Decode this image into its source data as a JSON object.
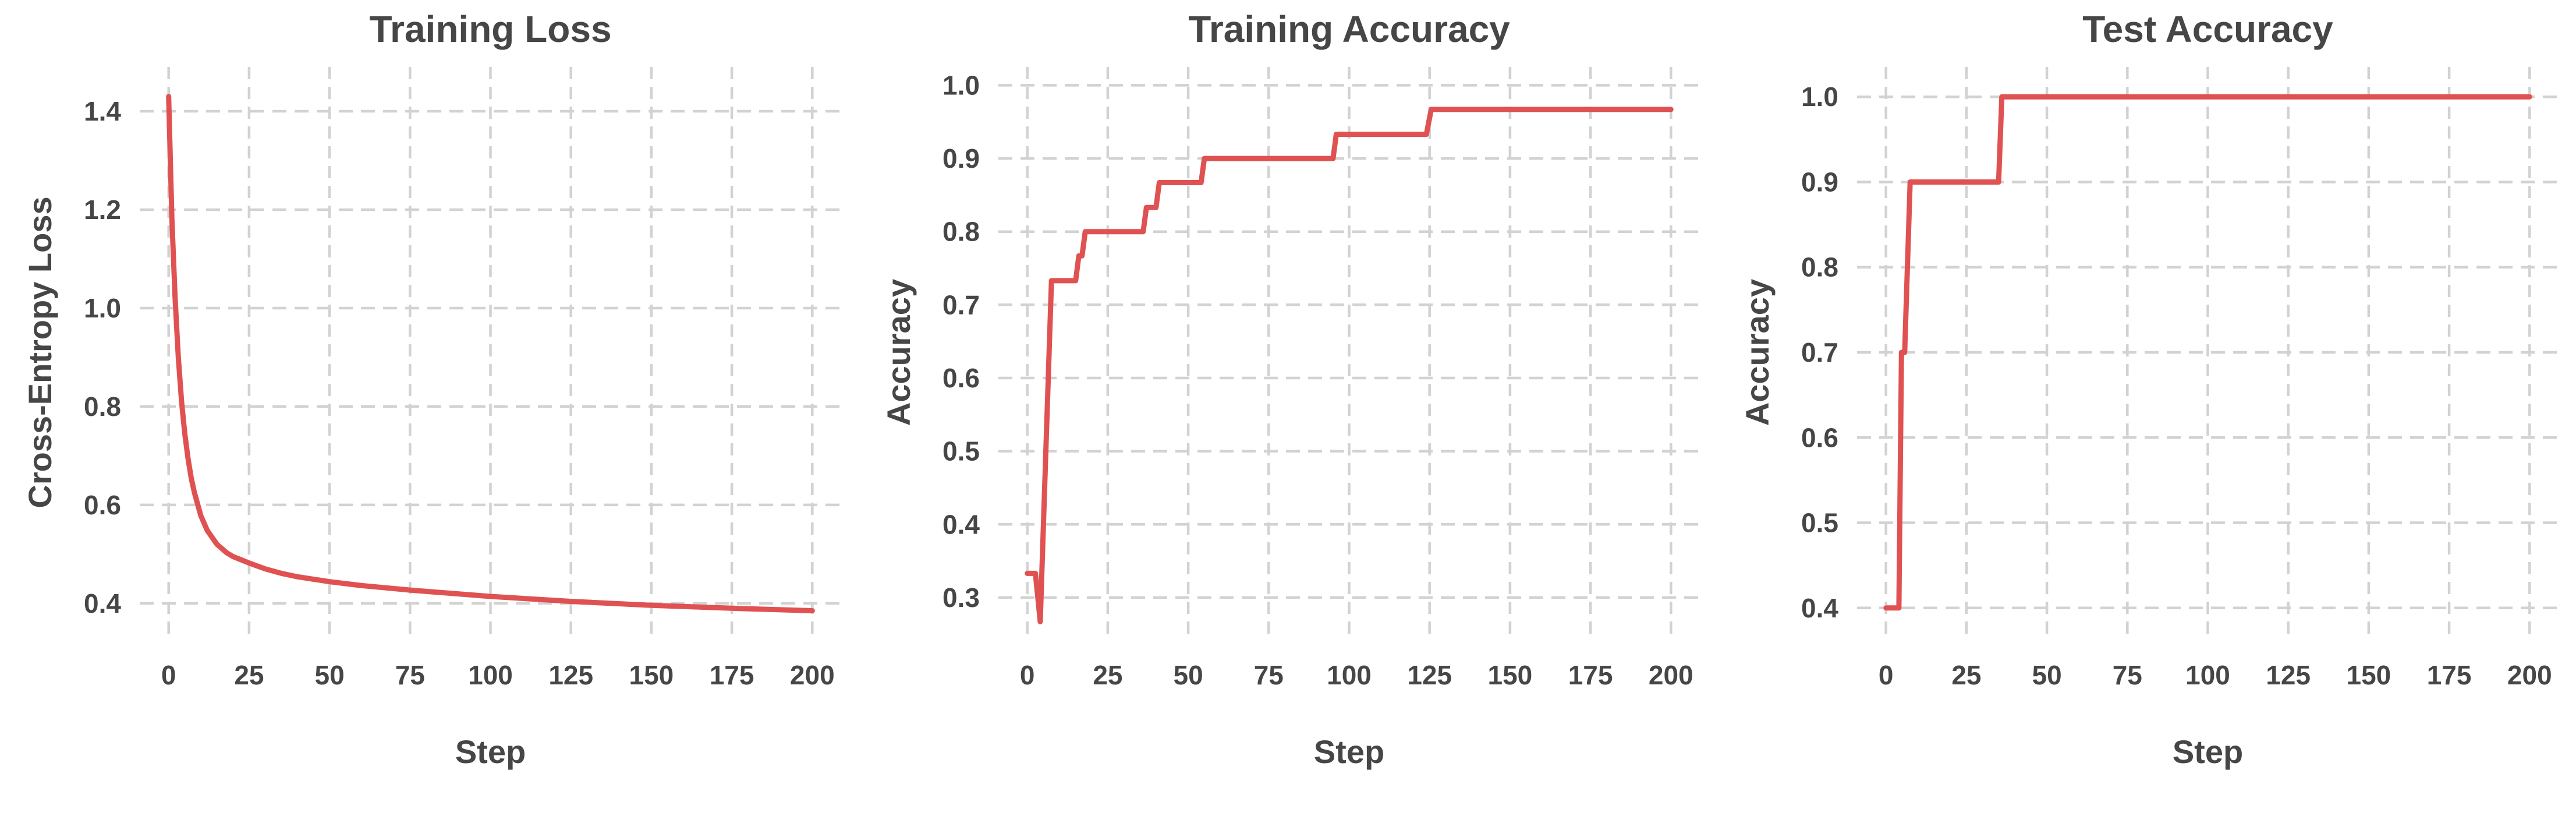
{
  "figure": {
    "background": "#ffffff",
    "text_color": "#464646",
    "grid_color": "#d2d2d2",
    "accent_color": "#e05152"
  },
  "chart_data": [
    {
      "type": "line",
      "title": "Training Loss",
      "xlabel": "Step",
      "ylabel": "Cross-Entropy Loss",
      "xlim": [
        -9,
        209
      ],
      "ylim": [
        0.33,
        1.49
      ],
      "xtick_values": [
        0,
        25,
        50,
        75,
        100,
        125,
        150,
        175,
        200
      ],
      "xtick_labels": [
        "0",
        "25",
        "50",
        "75",
        "100",
        "125",
        "150",
        "175",
        "200"
      ],
      "ytick_values": [
        0.4,
        0.6,
        0.8,
        1.0,
        1.2,
        1.4
      ],
      "ytick_labels": [
        "0.4",
        "0.6",
        "0.8",
        "1.0",
        "1.2",
        "1.4"
      ],
      "grid": true,
      "legend": "none",
      "line_color": "#e05152",
      "series": [
        {
          "name": "train_loss",
          "points": [
            [
              0,
              1.43
            ],
            [
              1,
              1.18
            ],
            [
              2,
              1.02
            ],
            [
              3,
              0.9
            ],
            [
              4,
              0.81
            ],
            [
              5,
              0.745
            ],
            [
              6,
              0.695
            ],
            [
              7,
              0.655
            ],
            [
              8,
              0.625
            ],
            [
              10,
              0.578
            ],
            [
              12,
              0.548
            ],
            [
              15,
              0.52
            ],
            [
              18,
              0.503
            ],
            [
              20,
              0.495
            ],
            [
              25,
              0.482
            ],
            [
              30,
              0.47
            ],
            [
              35,
              0.461
            ],
            [
              40,
              0.454
            ],
            [
              50,
              0.444
            ],
            [
              60,
              0.436
            ],
            [
              75,
              0.427
            ],
            [
              100,
              0.414
            ],
            [
              125,
              0.404
            ],
            [
              150,
              0.396
            ],
            [
              175,
              0.39
            ],
            [
              200,
              0.385
            ]
          ]
        }
      ]
    },
    {
      "type": "line",
      "title": "Training Accuracy",
      "xlabel": "Step",
      "ylabel": "Accuracy",
      "xlim": [
        -9,
        209
      ],
      "ylim": [
        0.245,
        1.025
      ],
      "xtick_values": [
        0,
        25,
        50,
        75,
        100,
        125,
        150,
        175,
        200
      ],
      "xtick_labels": [
        "0",
        "25",
        "50",
        "75",
        "100",
        "125",
        "150",
        "175",
        "200"
      ],
      "ytick_values": [
        0.3,
        0.4,
        0.5,
        0.6,
        0.7,
        0.8,
        0.9,
        1.0
      ],
      "ytick_labels": [
        "0.3",
        "0.4",
        "0.5",
        "0.6",
        "0.7",
        "0.8",
        "0.9",
        "1.0"
      ],
      "grid": true,
      "legend": "none",
      "line_color": "#e05152",
      "series": [
        {
          "name": "train_accuracy",
          "points": [
            [
              0,
              0.333
            ],
            [
              2.5,
              0.333
            ],
            [
              4,
              0.267
            ],
            [
              5,
              0.4
            ],
            [
              6,
              0.533
            ],
            [
              6.5,
              0.6
            ],
            [
              7.5,
              0.733
            ],
            [
              15,
              0.733
            ],
            [
              16,
              0.767
            ],
            [
              17,
              0.767
            ],
            [
              18,
              0.8
            ],
            [
              36,
              0.8
            ],
            [
              37,
              0.833
            ],
            [
              40,
              0.833
            ],
            [
              41,
              0.867
            ],
            [
              54,
              0.867
            ],
            [
              55,
              0.9
            ],
            [
              95,
              0.9
            ],
            [
              96,
              0.933
            ],
            [
              124,
              0.933
            ],
            [
              125.5,
              0.967
            ],
            [
              200,
              0.967
            ]
          ]
        }
      ]
    },
    {
      "type": "line",
      "title": "Test Accuracy",
      "xlabel": "Step",
      "ylabel": "Accuracy",
      "xlim": [
        -9,
        209
      ],
      "ylim": [
        0.365,
        1.035
      ],
      "xtick_values": [
        0,
        25,
        50,
        75,
        100,
        125,
        150,
        175,
        200
      ],
      "xtick_labels": [
        "0",
        "25",
        "50",
        "75",
        "100",
        "125",
        "150",
        "175",
        "200"
      ],
      "ytick_values": [
        0.4,
        0.5,
        0.6,
        0.7,
        0.8,
        0.9,
        1.0
      ],
      "ytick_labels": [
        "0.4",
        "0.5",
        "0.6",
        "0.7",
        "0.8",
        "0.9",
        "1.0"
      ],
      "grid": true,
      "legend": "none",
      "line_color": "#e05152",
      "series": [
        {
          "name": "test_accuracy",
          "points": [
            [
              0,
              0.4
            ],
            [
              4,
              0.4
            ],
            [
              4.8,
              0.7
            ],
            [
              5.8,
              0.7
            ],
            [
              7.5,
              0.9
            ],
            [
              35,
              0.9
            ],
            [
              36,
              1.0
            ],
            [
              200,
              1.0
            ]
          ]
        }
      ]
    }
  ]
}
